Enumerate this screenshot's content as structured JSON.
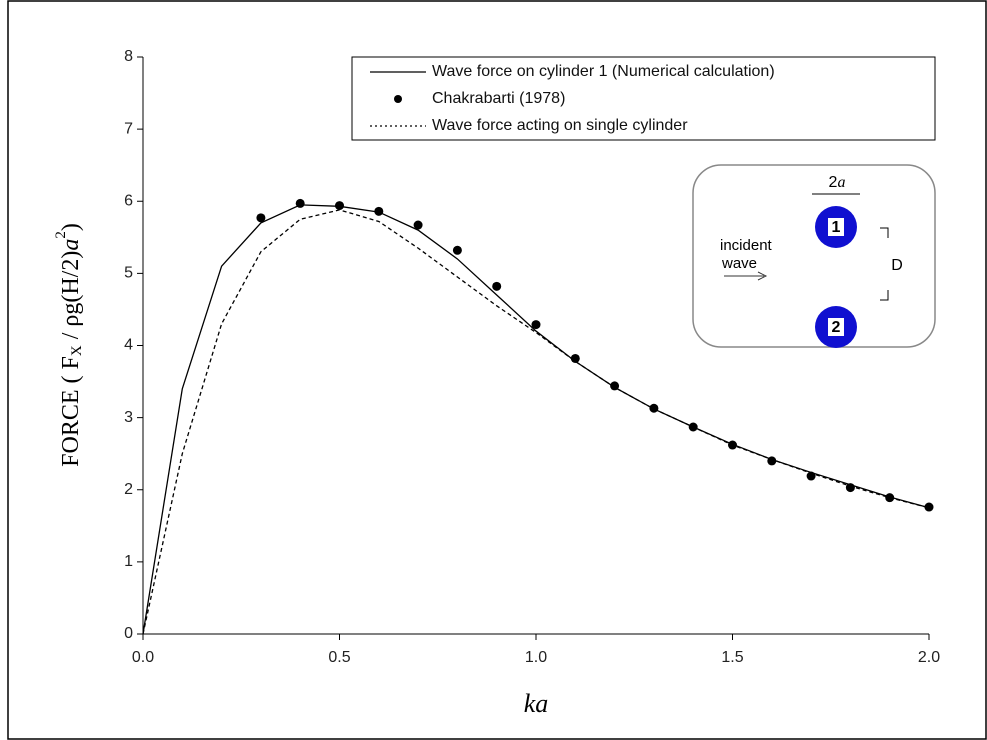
{
  "chart_data": {
    "type": "line",
    "xlabel": "ka",
    "ylabel": [
      "FORCE ( F",
      "X",
      " /  ρg(H/2)",
      "a",
      "2",
      ")"
    ],
    "xlim": [
      0,
      2
    ],
    "ylim": [
      0,
      8
    ],
    "xticks": [
      {
        "value": 0,
        "label": "0.0"
      },
      0.5,
      {
        "value": 1,
        "label": "1.0"
      },
      1.5,
      {
        "value": 2,
        "label": "2.0"
      }
    ],
    "yticks": [
      0,
      1,
      2,
      3,
      4,
      5,
      6,
      7,
      8
    ],
    "series": [
      {
        "name": "Wave force on cylinder 1 (Numerical calculation)",
        "color": "#000000",
        "mode": "solid",
        "x": [
          0,
          0.1,
          0.2,
          0.3,
          0.4,
          0.5,
          0.6,
          0.7,
          0.8,
          0.9,
          1.0,
          1.1,
          1.2,
          1.3,
          1.4,
          1.5,
          1.6,
          1.7,
          1.8,
          1.9,
          2.0
        ],
        "values": [
          0,
          3.4,
          5.1,
          5.7,
          5.95,
          5.93,
          5.85,
          5.6,
          5.2,
          4.7,
          4.2,
          3.78,
          3.42,
          3.12,
          2.87,
          2.63,
          2.42,
          2.24,
          2.07,
          1.9,
          1.75
        ]
      },
      {
        "name": "Chakrabarti (1978)",
        "color": "#000000",
        "mode": "markers",
        "x": [
          0.3,
          0.4,
          0.5,
          0.6,
          0.7,
          0.8,
          0.9,
          1.0,
          1.1,
          1.2,
          1.3,
          1.4,
          1.5,
          1.6,
          1.7,
          1.8,
          1.9,
          2.0
        ],
        "values": [
          5.77,
          5.97,
          5.94,
          5.86,
          5.67,
          5.32,
          4.82,
          4.29,
          3.82,
          3.44,
          3.13,
          2.87,
          2.62,
          2.4,
          2.19,
          2.03,
          1.89,
          1.76
        ]
      },
      {
        "name": "Wave force acting on single cylinder",
        "color": "#000000",
        "mode": "dashed",
        "x": [
          0,
          0.1,
          0.2,
          0.3,
          0.4,
          0.5,
          0.6,
          0.7,
          0.8,
          0.9,
          1.0,
          1.1,
          1.2,
          1.3,
          1.4,
          1.5,
          1.6,
          1.7,
          1.8,
          1.9,
          2.0
        ],
        "values": [
          0,
          2.5,
          4.3,
          5.3,
          5.75,
          5.88,
          5.72,
          5.35,
          4.95,
          4.55,
          4.18,
          3.78,
          3.42,
          3.12,
          2.87,
          2.62,
          2.42,
          2.23,
          2.05,
          1.89,
          1.75
        ]
      }
    ],
    "annotations": [
      "2",
      "a",
      "incident",
      "wave",
      "D",
      "1",
      "2"
    ]
  }
}
